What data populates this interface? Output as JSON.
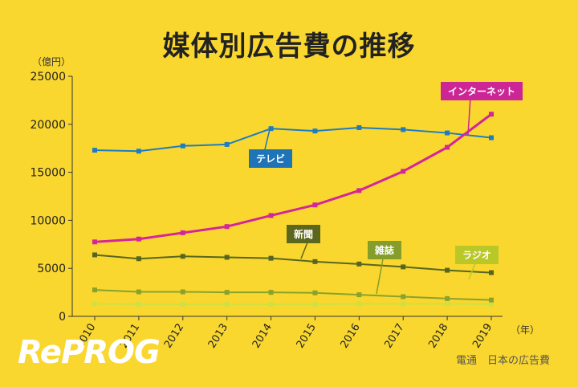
{
  "title": "媒体別広告費の推移",
  "unit_label": "（億円）",
  "year_unit_label": "（年）",
  "logo_text": "RePROG",
  "source_text": "電通　日本の広告費",
  "chart_data": {
    "type": "line",
    "x": [
      "2010",
      "2011",
      "2012",
      "2013",
      "2014",
      "2015",
      "2016",
      "2017",
      "2018",
      "2019"
    ],
    "ylim": [
      0,
      25000
    ],
    "yticks": [
      0,
      5000,
      10000,
      15000,
      20000,
      25000
    ],
    "grid": false,
    "series": [
      {
        "name": "テレビ",
        "color": "#1f7cc0",
        "tag_color": "#1f73b7",
        "values": [
          17300,
          17200,
          17750,
          17900,
          19550,
          19300,
          19650,
          19450,
          19100,
          18600
        ]
      },
      {
        "name": "インターネット",
        "color": "#d4259a",
        "tag_color": "#cc2596",
        "values": [
          7750,
          8050,
          8700,
          9350,
          10500,
          11600,
          13100,
          15100,
          17600,
          21050
        ]
      },
      {
        "name": "新聞",
        "color": "#57661f",
        "tag_color": "#5b671c",
        "values": [
          6400,
          6000,
          6250,
          6150,
          6050,
          5700,
          5450,
          5150,
          4800,
          4550
        ]
      },
      {
        "name": "雑誌",
        "color": "#89a22c",
        "tag_color": "#849d2b",
        "values": [
          2750,
          2550,
          2550,
          2500,
          2500,
          2450,
          2250,
          2050,
          1850,
          1700
        ]
      },
      {
        "name": "ラジオ",
        "color": "#cfe040",
        "tag_color": "#b9c827",
        "values": [
          1300,
          1250,
          1250,
          1250,
          1250,
          1250,
          1300,
          1300,
          1300,
          1250
        ]
      }
    ]
  }
}
